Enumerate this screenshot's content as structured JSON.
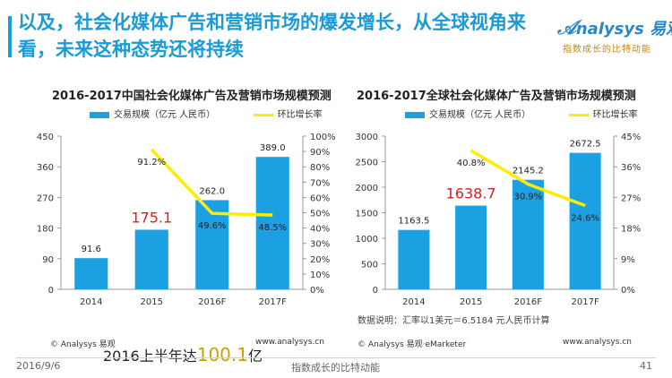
{
  "header": {
    "title": "以及，社会化媒体广告和营销市场的爆发增长，从全球视角来看，未来这种态势还将持续",
    "logo_text": "nalysys 易观",
    "logo_slogan": "指数成长的比特动能",
    "accent_color": "#1a9bd7"
  },
  "charts": [
    {
      "title": "2016-2017中国社会化媒体广告及营销市场规模预测",
      "legend_bar": "交易规模（亿元 人民币）",
      "legend_line": "环比增长率",
      "source": "© Analysys 易观",
      "website": "www.analysys.cn",
      "highlight_label": "175.1"
    },
    {
      "title": "2016-2017全球社会化媒体广告及营销市场规模预测",
      "legend_bar": "交易规模（亿元 人民币）",
      "legend_line": "环比增长率",
      "source": "© Analysys 易观·eMarketer",
      "website": "www.analysys.cn",
      "note": "数据说明：汇率以1美元＝6.5184 元人民币计算",
      "highlight_label": "1638.7"
    }
  ],
  "chart_data": [
    {
      "type": "bar",
      "categories": [
        "2014",
        "2015",
        "2016F",
        "2017F"
      ],
      "series": [
        {
          "name": "交易规模（亿元 人民币）",
          "values": [
            91.6,
            175.1,
            262.0,
            389.0
          ],
          "labels": [
            "91.6",
            "175.1",
            "262.0",
            "389.0"
          ],
          "color": "#1ba1e2"
        },
        {
          "name": "环比增长率",
          "type": "line",
          "values": [
            null,
            91.2,
            49.6,
            48.5
          ],
          "labels": [
            "",
            "91.2%",
            "49.6%",
            "48.5%"
          ],
          "color": "#ffec00",
          "axis": "right"
        }
      ],
      "ylim": [
        0,
        450
      ],
      "yticks": [
        "0",
        "90",
        "180",
        "270",
        "360",
        "450"
      ],
      "y2lim": [
        0,
        100
      ],
      "y2ticks": [
        "0%",
        "10%",
        "20%",
        "30%",
        "40%",
        "50%",
        "60%",
        "70%",
        "80%",
        "90%",
        "100%"
      ],
      "highlight_index": 1
    },
    {
      "type": "bar",
      "categories": [
        "2014",
        "2015",
        "2016F",
        "2017F"
      ],
      "series": [
        {
          "name": "交易规模（亿元 人民币）",
          "values": [
            1163.5,
            1638.7,
            2145.2,
            2672.5
          ],
          "labels": [
            "1163.5",
            "1638.7",
            "2145.2",
            "2672.5"
          ],
          "color": "#1ba1e2"
        },
        {
          "name": "环比增长率",
          "type": "line",
          "values": [
            null,
            40.8,
            30.9,
            24.6
          ],
          "labels": [
            "",
            "40.8%",
            "30.9%",
            "24.6%"
          ],
          "color": "#ffec00",
          "axis": "right"
        }
      ],
      "ylim": [
        0,
        3000
      ],
      "yticks": [
        "0",
        "500",
        "1000",
        "1500",
        "2000",
        "2500",
        "3000"
      ],
      "y2lim": [
        0,
        45
      ],
      "y2ticks": [
        "0%",
        "9%",
        "18%",
        "27%",
        "36%",
        "45%"
      ],
      "highlight_index": 1
    }
  ],
  "callout": {
    "prefix": "2016上半年达",
    "value": "100.1",
    "suffix": "亿"
  },
  "footer": {
    "date": "2016/9/6",
    "slogan": "指数成长的比特动能",
    "page": "41"
  }
}
